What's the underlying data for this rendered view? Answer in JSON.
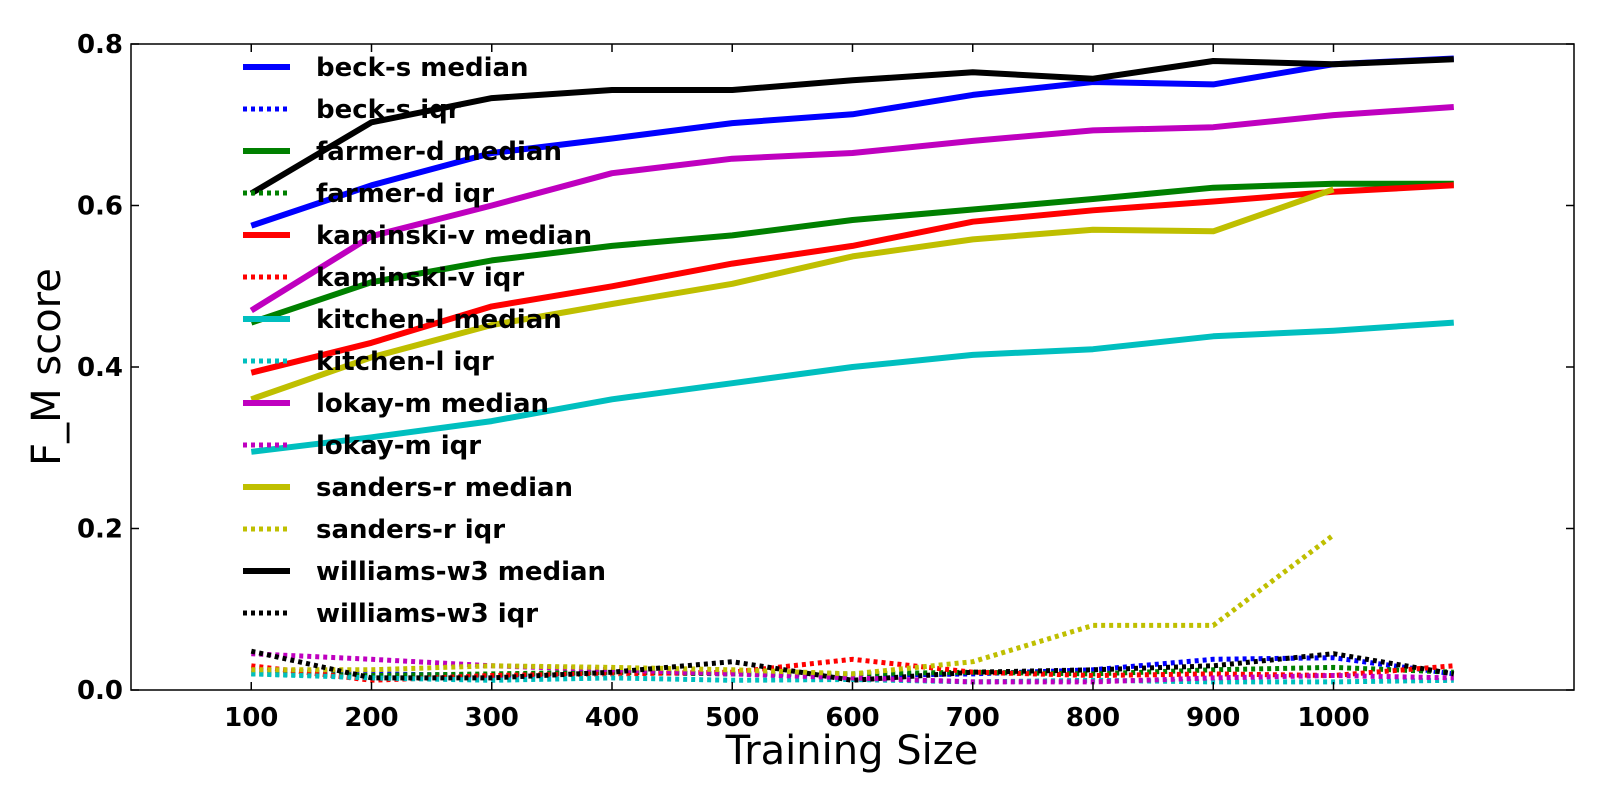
{
  "chart_data": {
    "type": "line",
    "title": "",
    "xlabel": "Training Size",
    "ylabel": "F_M score",
    "xlim": [
      0,
      1200
    ],
    "ylim": [
      0,
      0.8
    ],
    "x_ticks": [
      100,
      200,
      300,
      400,
      500,
      600,
      700,
      800,
      900,
      1000
    ],
    "x_tick_labels": [
      "100",
      "200",
      "300",
      "400",
      "500",
      "600",
      "700",
      "800",
      "900",
      "1000"
    ],
    "y_ticks": [
      0.0,
      0.2,
      0.4,
      0.6,
      0.8
    ],
    "y_tick_labels": [
      "0.0",
      "0.2",
      "0.4",
      "0.6",
      "0.8"
    ],
    "grid": false,
    "legend_position": "top-left",
    "series": [
      {
        "name": "beck-s median",
        "color": "#0000ff",
        "style": "solid",
        "x": [
          100,
          200,
          300,
          400,
          500,
          600,
          700,
          800,
          900,
          1000,
          1100
        ],
        "values": [
          0.575,
          0.625,
          0.665,
          0.683,
          0.702,
          0.713,
          0.737,
          0.753,
          0.75,
          0.775,
          0.782
        ]
      },
      {
        "name": "beck-s iqr",
        "color": "#0000ff",
        "style": "dotted",
        "x": [
          100,
          200,
          300,
          400,
          500,
          600,
          700,
          800,
          900,
          1000,
          1100
        ],
        "values": [
          0.025,
          0.02,
          0.018,
          0.022,
          0.02,
          0.018,
          0.02,
          0.025,
          0.038,
          0.04,
          0.02
        ]
      },
      {
        "name": "farmer-d median",
        "color": "#008000",
        "style": "solid",
        "x": [
          100,
          200,
          300,
          400,
          500,
          600,
          700,
          800,
          900,
          1000,
          1100
        ],
        "values": [
          0.455,
          0.505,
          0.532,
          0.55,
          0.563,
          0.582,
          0.595,
          0.608,
          0.622,
          0.627,
          0.627
        ]
      },
      {
        "name": "farmer-d iqr",
        "color": "#008000",
        "style": "dotted",
        "x": [
          100,
          200,
          300,
          400,
          500,
          600,
          700,
          800,
          900,
          1000,
          1100
        ],
        "values": [
          0.02,
          0.018,
          0.02,
          0.022,
          0.02,
          0.02,
          0.022,
          0.02,
          0.025,
          0.028,
          0.022
        ]
      },
      {
        "name": "kaminski-v median",
        "color": "#ff0000",
        "style": "solid",
        "x": [
          100,
          200,
          300,
          400,
          500,
          600,
          700,
          800,
          900,
          1000,
          1100
        ],
        "values": [
          0.393,
          0.43,
          0.475,
          0.5,
          0.528,
          0.55,
          0.58,
          0.594,
          0.605,
          0.617,
          0.625
        ]
      },
      {
        "name": "kaminski-v iqr",
        "color": "#ff0000",
        "style": "dotted",
        "x": [
          100,
          200,
          300,
          400,
          500,
          600,
          700,
          800,
          900,
          1000,
          1100
        ],
        "values": [
          0.03,
          0.012,
          0.018,
          0.02,
          0.022,
          0.038,
          0.022,
          0.018,
          0.02,
          0.018,
          0.03
        ]
      },
      {
        "name": "kitchen-l median",
        "color": "#00bfbf",
        "style": "solid",
        "x": [
          100,
          200,
          300,
          400,
          500,
          600,
          700,
          800,
          900,
          1000,
          1100
        ],
        "values": [
          0.295,
          0.313,
          0.333,
          0.36,
          0.38,
          0.4,
          0.415,
          0.422,
          0.438,
          0.445,
          0.455
        ]
      },
      {
        "name": "kitchen-l iqr",
        "color": "#00bfbf",
        "style": "dotted",
        "x": [
          100,
          200,
          300,
          400,
          500,
          600,
          700,
          800,
          900,
          1000,
          1100
        ],
        "values": [
          0.02,
          0.015,
          0.012,
          0.015,
          0.012,
          0.013,
          0.01,
          0.012,
          0.01,
          0.01,
          0.012
        ]
      },
      {
        "name": "lokay-m median",
        "color": "#bf00bf",
        "style": "solid",
        "x": [
          100,
          200,
          300,
          400,
          500,
          600,
          700,
          800,
          900,
          1000,
          1100
        ],
        "values": [
          0.47,
          0.562,
          0.6,
          0.64,
          0.658,
          0.665,
          0.68,
          0.693,
          0.697,
          0.712,
          0.722
        ]
      },
      {
        "name": "lokay-m iqr",
        "color": "#bf00bf",
        "style": "dotted",
        "x": [
          100,
          200,
          300,
          400,
          500,
          600,
          700,
          800,
          900,
          1000,
          1100
        ],
        "values": [
          0.045,
          0.038,
          0.03,
          0.025,
          0.02,
          0.015,
          0.01,
          0.01,
          0.015,
          0.018,
          0.015
        ]
      },
      {
        "name": "sanders-r median",
        "color": "#bfbf00",
        "style": "solid",
        "x": [
          100,
          200,
          300,
          400,
          500,
          600,
          700,
          800,
          900,
          1000
        ],
        "values": [
          0.36,
          0.412,
          0.452,
          0.478,
          0.503,
          0.537,
          0.558,
          0.57,
          0.568,
          0.62
        ]
      },
      {
        "name": "sanders-r iqr",
        "color": "#bfbf00",
        "style": "dotted",
        "x": [
          100,
          200,
          300,
          400,
          500,
          600,
          700,
          800,
          900,
          1000
        ],
        "values": [
          0.025,
          0.025,
          0.03,
          0.028,
          0.025,
          0.02,
          0.035,
          0.08,
          0.08,
          0.192
        ]
      },
      {
        "name": "williams-w3 median",
        "color": "#000000",
        "style": "solid",
        "x": [
          100,
          200,
          300,
          400,
          500,
          600,
          700,
          800,
          900,
          1000,
          1100
        ],
        "values": [
          0.615,
          0.703,
          0.733,
          0.743,
          0.743,
          0.755,
          0.765,
          0.757,
          0.779,
          0.775,
          0.781
        ]
      },
      {
        "name": "williams-w3 iqr",
        "color": "#000000",
        "style": "dotted",
        "x": [
          100,
          200,
          300,
          400,
          500,
          600,
          700,
          800,
          900,
          1000,
          1100
        ],
        "values": [
          0.048,
          0.015,
          0.015,
          0.022,
          0.035,
          0.012,
          0.022,
          0.025,
          0.03,
          0.045,
          0.02
        ]
      }
    ]
  }
}
